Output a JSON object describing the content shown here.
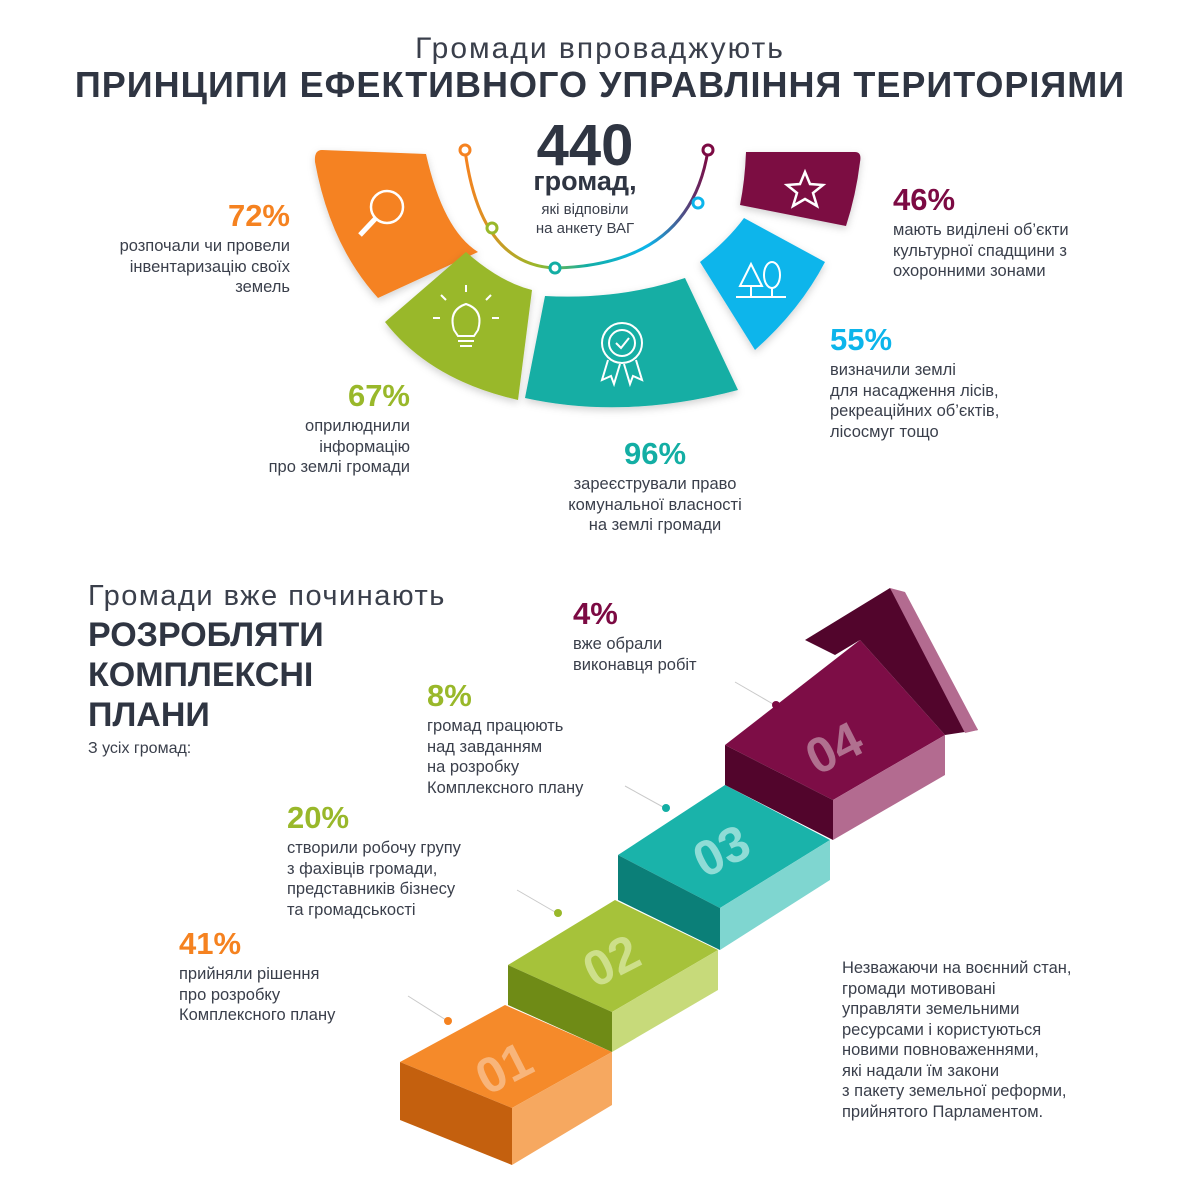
{
  "header": {
    "subtitle": "Громади впроваджують",
    "title": "ПРИНЦИПИ ЕФЕКТИВНОГО УПРАВЛІННЯ ТЕРИТОРІЯМИ"
  },
  "center": {
    "number": "440",
    "unit": "громад,",
    "desc": [
      "які відповіли",
      "на анкету ВАГ"
    ]
  },
  "principles": [
    {
      "id": "inventory",
      "percent": "72%",
      "color": "#f58220",
      "icon": "magnifier-icon",
      "lines": [
        "розпочали чи провели",
        "інвентаризацію своїх",
        "земель"
      ]
    },
    {
      "id": "publish",
      "percent": "67%",
      "color": "#99b82a",
      "icon": "lightbulb-icon",
      "lines": [
        "оприлюднили",
        "інформацію",
        "про землі громади"
      ]
    },
    {
      "id": "register",
      "percent": "96%",
      "color": "#13aea4",
      "icon": "award-badge-icon",
      "lines": [
        "зареєстрували право",
        "комунальної власності",
        "на землі громади"
      ]
    },
    {
      "id": "forest",
      "percent": "55%",
      "color": "#0cb5eb",
      "icon": "trees-icon",
      "lines": [
        "визначили землі",
        "для насадження лісів,",
        "рекреаційних об’єктів,",
        "лісосмуг тощо"
      ]
    },
    {
      "id": "heritage",
      "percent": "46%",
      "color": "#7c0a43",
      "icon": "star-icon",
      "lines": [
        "мають виділені об’єкти",
        "культурної спадщини з",
        "охоронними зонами"
      ]
    }
  ],
  "section2": {
    "subtitle": "Громади вже починають",
    "title_lines": [
      "РОЗРОБЛЯТИ",
      "КОМПЛЕКСНІ",
      "ПЛАНИ"
    ],
    "note": "З усіх громад:"
  },
  "steps": [
    {
      "num": "01",
      "percent": "41%",
      "color": "#f58220",
      "lines": [
        "прийняли рішення",
        "про розробку",
        "Комплексного плану"
      ]
    },
    {
      "num": "02",
      "percent": "20%",
      "color": "#99b82a",
      "lines": [
        "створили робочу групу",
        "з фахівців громади,",
        "представників бізнесу",
        "та громадськості"
      ]
    },
    {
      "num": "03",
      "percent": "8%",
      "color": "#13aea4",
      "lines": [
        "громад працюють",
        "над завданням",
        "на розробку",
        "Комплексного плану"
      ]
    },
    {
      "num": "04",
      "percent": "4%",
      "color": "#7c0a43",
      "lines": [
        "вже обрали",
        "виконавця робіт"
      ]
    }
  ],
  "footer": [
    "Незважаючи на воєнний стан,",
    "громади мотивовані",
    "управляти земельними",
    "ресурсами і користуються",
    "новими повноваженнями,",
    "які надали їм закони",
    "з пакету земельної реформи,",
    "прийнятого Парламентом."
  ]
}
